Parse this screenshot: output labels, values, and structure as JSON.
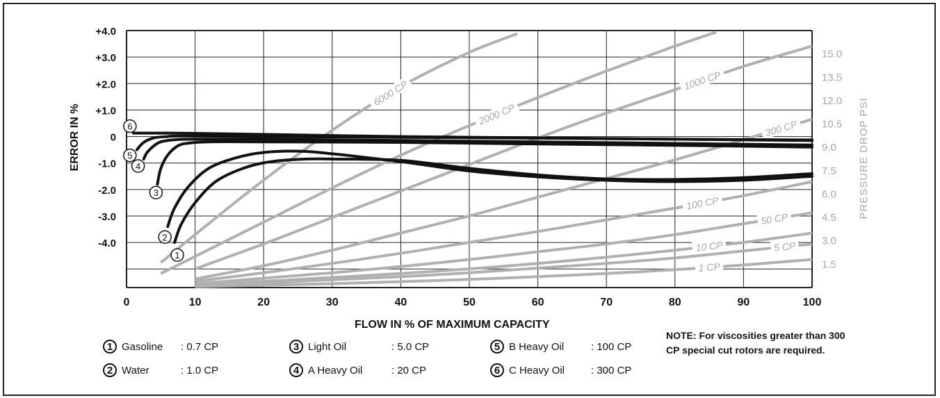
{
  "chart_data": {
    "type": "line",
    "xlabel": "FLOW IN % OF MAXIMUM CAPACITY",
    "ylabel": "ERROR IN %",
    "y2label": "PRESSURE DROP PSI",
    "xlim": [
      0,
      100
    ],
    "ylim": [
      -5.7,
      4.0
    ],
    "y2lim": [
      0,
      16.5
    ],
    "grid": true,
    "x_ticks": [
      "0",
      "10",
      "20",
      "30",
      "40",
      "50",
      "60",
      "70",
      "80",
      "90",
      "100"
    ],
    "y_ticks": [
      {
        "label": "+4.0",
        "value": 4
      },
      {
        "label": "+3.0",
        "value": 3
      },
      {
        "label": "+2.0",
        "value": 2
      },
      {
        "label": "+1.0",
        "value": 1
      },
      {
        "label": "0",
        "value": 0
      },
      {
        "label": "-1.0",
        "value": -1
      },
      {
        "label": "-2.0",
        "value": -2
      },
      {
        "label": "-3.0",
        "value": -3
      },
      {
        "label": "-4.0",
        "value": -4
      }
    ],
    "y2_ticks": [
      {
        "label": "15.0",
        "value": 15
      },
      {
        "label": "13.5",
        "value": 13.5
      },
      {
        "label": "12.0",
        "value": 12
      },
      {
        "label": "10.5",
        "value": 10.5
      },
      {
        "label": "9.0",
        "value": 9
      },
      {
        "label": "7.5",
        "value": 7.5
      },
      {
        "label": "6.0",
        "value": 6
      },
      {
        "label": "4.5",
        "value": 4.5
      },
      {
        "label": "3.0",
        "value": 3
      },
      {
        "label": "1.5",
        "value": 1.5
      }
    ],
    "error_series": [
      {
        "marker": "1",
        "x": [
          7,
          8,
          10,
          13,
          17,
          21,
          26,
          30,
          40,
          50,
          60,
          70,
          80,
          90,
          100
        ],
        "y": [
          -4.0,
          -3.3,
          -2.5,
          -1.7,
          -1.2,
          -0.95,
          -0.85,
          -0.85,
          -0.9,
          -1.2,
          -1.45,
          -1.6,
          -1.62,
          -1.55,
          -1.4
        ]
      },
      {
        "marker": "2",
        "x": [
          6,
          7,
          9,
          12,
          16,
          20,
          25,
          30,
          40,
          50,
          60,
          70,
          80,
          90,
          100
        ],
        "y": [
          -3.4,
          -2.7,
          -1.9,
          -1.2,
          -0.8,
          -0.6,
          -0.55,
          -0.65,
          -0.95,
          -1.3,
          -1.52,
          -1.65,
          -1.7,
          -1.65,
          -1.5
        ]
      },
      {
        "marker": "3",
        "x": [
          4.5,
          5,
          6,
          7.5,
          9,
          12,
          20,
          40,
          60,
          80,
          100
        ],
        "y": [
          -1.8,
          -1.2,
          -0.7,
          -0.35,
          -0.25,
          -0.2,
          -0.2,
          -0.22,
          -0.28,
          -0.33,
          -0.4
        ]
      },
      {
        "marker": "4",
        "x": [
          2.5,
          3,
          4,
          5,
          7,
          10,
          20,
          40,
          60,
          80,
          100
        ],
        "y": [
          -0.85,
          -0.6,
          -0.35,
          -0.2,
          -0.12,
          -0.1,
          -0.1,
          -0.15,
          -0.2,
          -0.26,
          -0.32
        ]
      },
      {
        "marker": "5",
        "x": [
          1.5,
          2.5,
          4,
          6,
          8,
          20,
          40,
          60,
          80,
          100
        ],
        "y": [
          -0.5,
          -0.22,
          -0.05,
          0.0,
          0.02,
          0.0,
          -0.03,
          -0.06,
          -0.1,
          -0.15
        ]
      },
      {
        "marker": "6",
        "x": [
          1,
          5,
          10,
          20,
          40,
          60,
          80,
          100
        ],
        "y": [
          0.13,
          0.13,
          0.12,
          0.08,
          0.0,
          -0.05,
          -0.1,
          -0.13
        ]
      }
    ],
    "pressure_series": [
      {
        "name": "6000 CP",
        "x": [
          5,
          10,
          20,
          30,
          40,
          50,
          57
        ],
        "y": [
          1.6,
          3.4,
          6.9,
          10.1,
          12.9,
          15.1,
          16.3
        ]
      },
      {
        "name": "2000 CP",
        "x": [
          5,
          10,
          20,
          30,
          40,
          50,
          60,
          70,
          80,
          86
        ],
        "y": [
          0.9,
          2.0,
          4.2,
          6.4,
          8.5,
          10.4,
          12.2,
          13.9,
          15.5,
          16.4
        ]
      },
      {
        "name": "1000 CP",
        "x": [
          10,
          20,
          30,
          40,
          50,
          60,
          70,
          80,
          90,
          100
        ],
        "y": [
          1.2,
          2.8,
          4.5,
          6.2,
          7.9,
          9.6,
          11.2,
          12.7,
          14.2,
          15.5
        ]
      },
      {
        "name": "300 CP",
        "x": [
          10,
          20,
          30,
          40,
          50,
          60,
          70,
          80,
          90,
          100
        ],
        "y": [
          0.55,
          1.4,
          2.4,
          3.5,
          4.6,
          5.8,
          7.0,
          8.2,
          9.5,
          10.8
        ]
      },
      {
        "name": "100 CP",
        "x": [
          10,
          20,
          30,
          40,
          50,
          60,
          70,
          80,
          90,
          100
        ],
        "y": [
          0.4,
          0.95,
          1.55,
          2.2,
          2.9,
          3.6,
          4.35,
          5.1,
          5.9,
          6.8
        ]
      },
      {
        "name": "50 CP",
        "x": [
          10,
          20,
          30,
          40,
          50,
          60,
          70,
          80,
          90,
          100
        ],
        "y": [
          0.25,
          0.6,
          0.95,
          1.35,
          1.8,
          2.3,
          2.8,
          3.4,
          4.1,
          4.8
        ]
      },
      {
        "name": "10 CP",
        "x": [
          10,
          20,
          30,
          40,
          50,
          60,
          70,
          80,
          90,
          100
        ],
        "y": [
          0.18,
          0.4,
          0.65,
          0.9,
          1.2,
          1.55,
          1.95,
          2.4,
          2.9,
          3.5
        ]
      },
      {
        "name": "5 CP",
        "x": [
          10,
          20,
          30,
          40,
          50,
          60,
          70,
          80,
          90,
          100
        ],
        "y": [
          0.12,
          0.3,
          0.5,
          0.7,
          0.95,
          1.25,
          1.55,
          1.9,
          2.35,
          2.8
        ]
      },
      {
        "name": "1 CP",
        "x": [
          10,
          20,
          30,
          40,
          50,
          60,
          70,
          80,
          90,
          100
        ],
        "y": [
          0.06,
          0.15,
          0.25,
          0.38,
          0.52,
          0.7,
          0.9,
          1.15,
          1.45,
          1.8
        ]
      }
    ],
    "pressure_labels": [
      {
        "text": "6000 CP",
        "x": 38.5
      },
      {
        "text": "2000 CP",
        "x": 54
      },
      {
        "text": "1000 CP",
        "x": 84
      },
      {
        "text": "300 CP",
        "x": 95.5
      },
      {
        "text": "100 CP",
        "x": 84
      },
      {
        "text": "50 CP",
        "x": 94.5
      },
      {
        "text": "10 CP",
        "x": 85
      },
      {
        "text": "5 CP",
        "x": 96
      },
      {
        "text": "1 CP",
        "x": 85
      }
    ],
    "legend": [
      {
        "num": "1",
        "name": "Gasoline",
        "value": ": 0.7 CP"
      },
      {
        "num": "2",
        "name": "Water",
        "value": ": 1.0 CP"
      },
      {
        "num": "3",
        "name": "Light Oil",
        "value": ": 5.0 CP"
      },
      {
        "num": "4",
        "name": "A Heavy Oil",
        "value": ": 20 CP"
      },
      {
        "num": "5",
        "name": "B Heavy Oil",
        "value": ": 100 CP"
      },
      {
        "num": "6",
        "name": "C Heavy Oil",
        "value": ": 300 CP"
      }
    ],
    "note": "NOTE:  For viscosities greater than 300 CP special cut rotors are required.",
    "colors": {
      "error_line": "#111111",
      "pressure_line": "#b0b0b0",
      "grid": "#222222",
      "right_axis_text": "#a8a8a8"
    }
  }
}
